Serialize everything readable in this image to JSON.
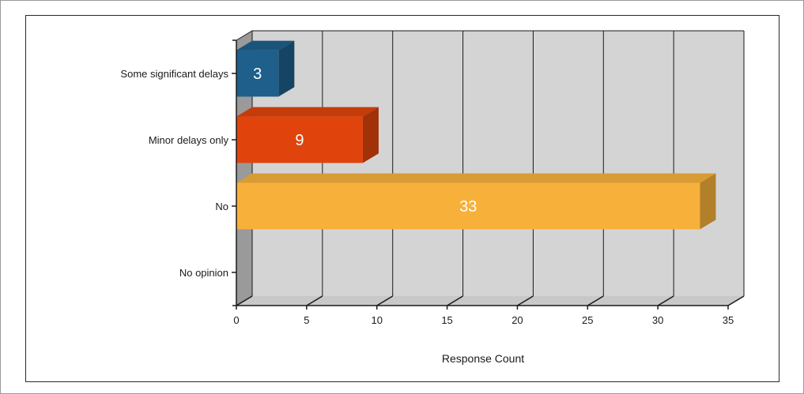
{
  "chart_data": {
    "type": "bar",
    "orientation": "horizontal",
    "style": "3d",
    "categories": [
      "Some significant delays",
      "Minor delays only",
      "No",
      "No opinion"
    ],
    "values": [
      3,
      9,
      33,
      0
    ],
    "data_labels": [
      "3",
      "9",
      "33",
      ""
    ],
    "colors": [
      "#1f5f8b",
      "#e0440c",
      "#f7b03a",
      "#999999"
    ],
    "xlabel": "Response Count",
    "xlim": [
      0,
      35
    ],
    "xticks": [
      0,
      5,
      10,
      15,
      20,
      25,
      30,
      35
    ],
    "grid": true,
    "legend": "none"
  }
}
